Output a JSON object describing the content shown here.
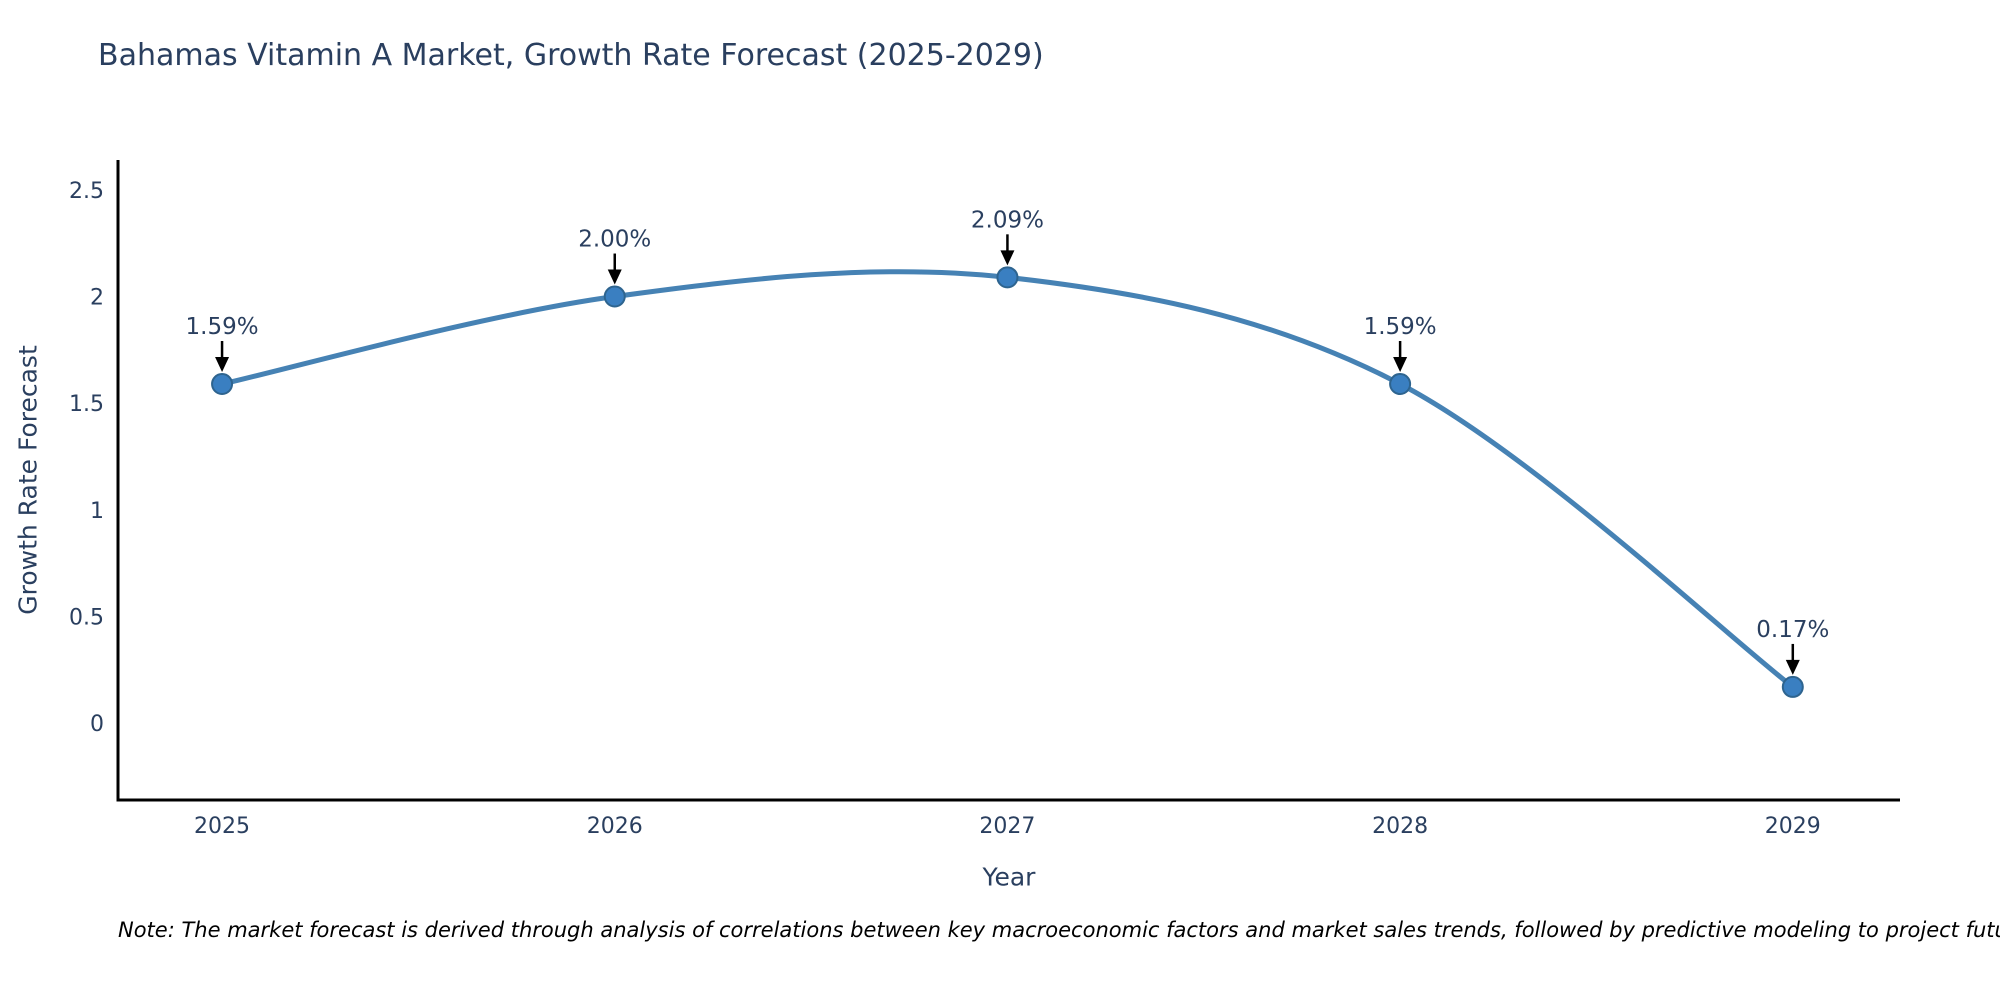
{
  "title": "Bahamas Vitamin A Market, Growth Rate Forecast (2025-2029)",
  "note": "Note: The market forecast is derived through analysis of correlations between key macroeconomic factors and market sales trends, followed by predictive modeling to project future sales",
  "chart_data": {
    "type": "line",
    "title": "Bahamas Vitamin A Market, Growth Rate Forecast (2025-2029)",
    "xlabel": "Year",
    "ylabel": "Growth Rate Forecast",
    "x": [
      2025,
      2026,
      2027,
      2028,
      2029
    ],
    "y": [
      1.59,
      2.0,
      2.09,
      1.59,
      0.17
    ],
    "point_labels": [
      "1.59%",
      "2.00%",
      "2.09%",
      "1.59%",
      "0.17%"
    ],
    "xticks": [
      "2025",
      "2026",
      "2027",
      "2028",
      "2029"
    ],
    "yticks": [
      "0",
      "0.5",
      "1",
      "1.5",
      "2",
      "2.5"
    ],
    "ytick_values": [
      0,
      0.5,
      1,
      1.5,
      2,
      2.5
    ],
    "xlim": [
      2024.735,
      2029.273
    ],
    "ylim": [
      -0.36,
      2.64
    ],
    "line_shape": "spline",
    "grid": false,
    "legend": "none",
    "colors": {
      "line": "#4682b4",
      "marker_fill": "#3a7fc1",
      "marker_edge": "#2e648f",
      "axis_line": "#000000",
      "tick_text": "#2a3f5f",
      "annotation_text": "#2a3f5f",
      "annotation_arrow": "#000000"
    }
  }
}
